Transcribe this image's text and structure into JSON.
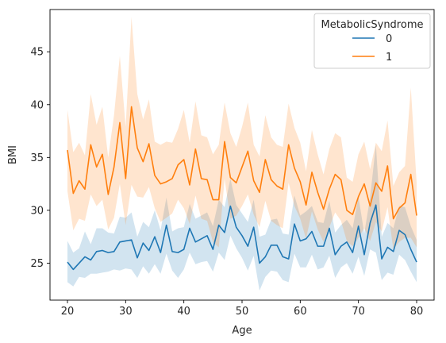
{
  "chart_data": {
    "type": "line",
    "title": "",
    "xlabel": "Age",
    "ylabel": "BMI",
    "xlim": [
      17,
      83
    ],
    "ylim": [
      21.5,
      49
    ],
    "xticks": [
      20,
      30,
      40,
      50,
      60,
      70,
      80
    ],
    "yticks": [
      25,
      30,
      35,
      40,
      45
    ],
    "grid": false,
    "legend": {
      "title": "MetabolicSyndrome",
      "placement": "top-right"
    },
    "x": [
      20,
      21,
      22,
      23,
      24,
      25,
      26,
      27,
      28,
      29,
      30,
      31,
      32,
      33,
      34,
      35,
      36,
      37,
      38,
      39,
      40,
      41,
      42,
      43,
      44,
      45,
      46,
      47,
      48,
      49,
      50,
      51,
      52,
      53,
      54,
      55,
      56,
      57,
      58,
      59,
      60,
      61,
      62,
      63,
      64,
      65,
      66,
      67,
      68,
      69,
      70,
      71,
      72,
      73,
      74,
      75,
      76,
      77,
      78,
      79,
      80
    ],
    "series": [
      {
        "name": "0",
        "color": "#1f77b4",
        "band_color": "#1f77b4",
        "values": [
          25.1,
          24.4,
          25.0,
          25.6,
          25.3,
          26.1,
          26.2,
          26.0,
          26.1,
          27.0,
          27.1,
          27.2,
          25.5,
          26.9,
          26.2,
          27.5,
          26.0,
          28.6,
          26.1,
          26.0,
          26.3,
          28.3,
          27.0,
          27.3,
          27.6,
          26.3,
          28.6,
          27.9,
          30.4,
          28.4,
          27.6,
          26.6,
          28.4,
          25.0,
          25.6,
          26.7,
          26.7,
          25.6,
          25.4,
          28.7,
          27.1,
          27.3,
          28.0,
          26.6,
          26.6,
          28.3,
          25.8,
          26.6,
          27.0,
          26.0,
          28.5,
          25.8,
          28.8,
          30.5,
          25.4,
          26.5,
          26.1,
          28.1,
          27.7,
          26.3,
          25.1
        ],
        "lower": [
          23.2,
          22.8,
          23.7,
          23.6,
          24.0,
          24.0,
          24.1,
          24.2,
          24.4,
          24.3,
          24.5,
          24.4,
          23.6,
          24.7,
          24.0,
          24.9,
          24.0,
          25.9,
          24.3,
          23.6,
          24.4,
          26.0,
          24.9,
          25.1,
          25.2,
          24.2,
          26.0,
          25.3,
          27.6,
          26.4,
          25.5,
          24.3,
          25.7,
          22.4,
          23.7,
          24.3,
          24.2,
          23.4,
          23.2,
          25.9,
          24.6,
          24.6,
          25.8,
          24.4,
          24.6,
          25.7,
          23.6,
          24.6,
          25.0,
          24.0,
          25.6,
          23.8,
          26.3,
          26.0,
          23.4,
          24.1,
          23.9,
          25.8,
          25.3,
          24.2,
          23.2
        ],
        "upper": [
          27.1,
          26.0,
          26.4,
          28.0,
          26.8,
          28.3,
          28.3,
          27.9,
          27.8,
          29.4,
          29.3,
          29.8,
          27.5,
          28.9,
          28.4,
          30.0,
          28.1,
          31.2,
          28.0,
          28.3,
          28.4,
          30.6,
          29.2,
          29.5,
          29.8,
          28.5,
          31.0,
          30.3,
          33.0,
          30.5,
          29.7,
          28.9,
          31.0,
          27.5,
          27.7,
          29.1,
          29.2,
          27.8,
          27.7,
          31.4,
          29.5,
          29.9,
          30.4,
          28.9,
          28.8,
          30.9,
          27.9,
          28.6,
          29.1,
          28.3,
          31.3,
          27.8,
          31.2,
          36.2,
          27.5,
          28.8,
          28.3,
          30.4,
          30.3,
          28.5,
          27.2
        ]
      },
      {
        "name": "1",
        "color": "#ff7f0e",
        "band_color": "#ff7f0e",
        "values": [
          35.7,
          31.6,
          32.8,
          32.0,
          36.2,
          34.1,
          35.3,
          31.5,
          34.1,
          38.3,
          33.0,
          39.8,
          35.9,
          34.6,
          36.3,
          33.3,
          32.5,
          32.7,
          33.0,
          34.3,
          34.8,
          32.4,
          35.8,
          33.0,
          32.9,
          31.0,
          31.0,
          36.5,
          33.1,
          32.6,
          34.1,
          35.6,
          32.8,
          31.7,
          34.8,
          32.9,
          32.3,
          32.0,
          36.2,
          34.0,
          32.7,
          30.5,
          33.6,
          31.7,
          30.1,
          32.0,
          33.4,
          32.9,
          30.0,
          29.6,
          31.3,
          32.5,
          30.4,
          32.6,
          31.8,
          34.2,
          29.2,
          30.2,
          30.7,
          33.4,
          29.5
        ],
        "lower": [
          31.8,
          28.1,
          29.2,
          29.0,
          31.5,
          30.4,
          31.0,
          28.2,
          29.3,
          32.5,
          28.6,
          32.4,
          31.3,
          31.2,
          32.2,
          30.2,
          28.9,
          29.3,
          29.7,
          31.0,
          30.2,
          28.7,
          31.4,
          29.2,
          29.0,
          27.0,
          26.5,
          33.0,
          29.2,
          29.5,
          30.4,
          31.5,
          29.6,
          28.4,
          30.9,
          29.0,
          28.6,
          28.3,
          32.6,
          30.4,
          29.2,
          27.3,
          29.9,
          28.2,
          27.0,
          28.4,
          29.8,
          29.0,
          27.1,
          26.6,
          27.4,
          28.3,
          27.1,
          28.9,
          28.0,
          30.3,
          26.3,
          27.0,
          27.4,
          27.4,
          26.5
        ],
        "upper": [
          39.5,
          35.5,
          36.4,
          35.2,
          41.0,
          38.1,
          39.8,
          35.0,
          39.0,
          44.6,
          37.9,
          48.3,
          41.0,
          38.6,
          40.5,
          36.5,
          36.2,
          36.5,
          36.4,
          37.7,
          39.5,
          36.4,
          40.3,
          37.1,
          36.9,
          35.3,
          36.2,
          40.2,
          37.3,
          36.0,
          37.9,
          40.2,
          36.2,
          35.1,
          39.0,
          36.9,
          36.2,
          36.0,
          40.1,
          37.8,
          36.4,
          33.7,
          37.6,
          35.3,
          33.4,
          35.8,
          37.3,
          36.9,
          33.1,
          32.7,
          35.3,
          36.5,
          33.9,
          36.4,
          35.6,
          38.5,
          32.3,
          33.6,
          34.2,
          41.6,
          32.6
        ]
      }
    ]
  }
}
